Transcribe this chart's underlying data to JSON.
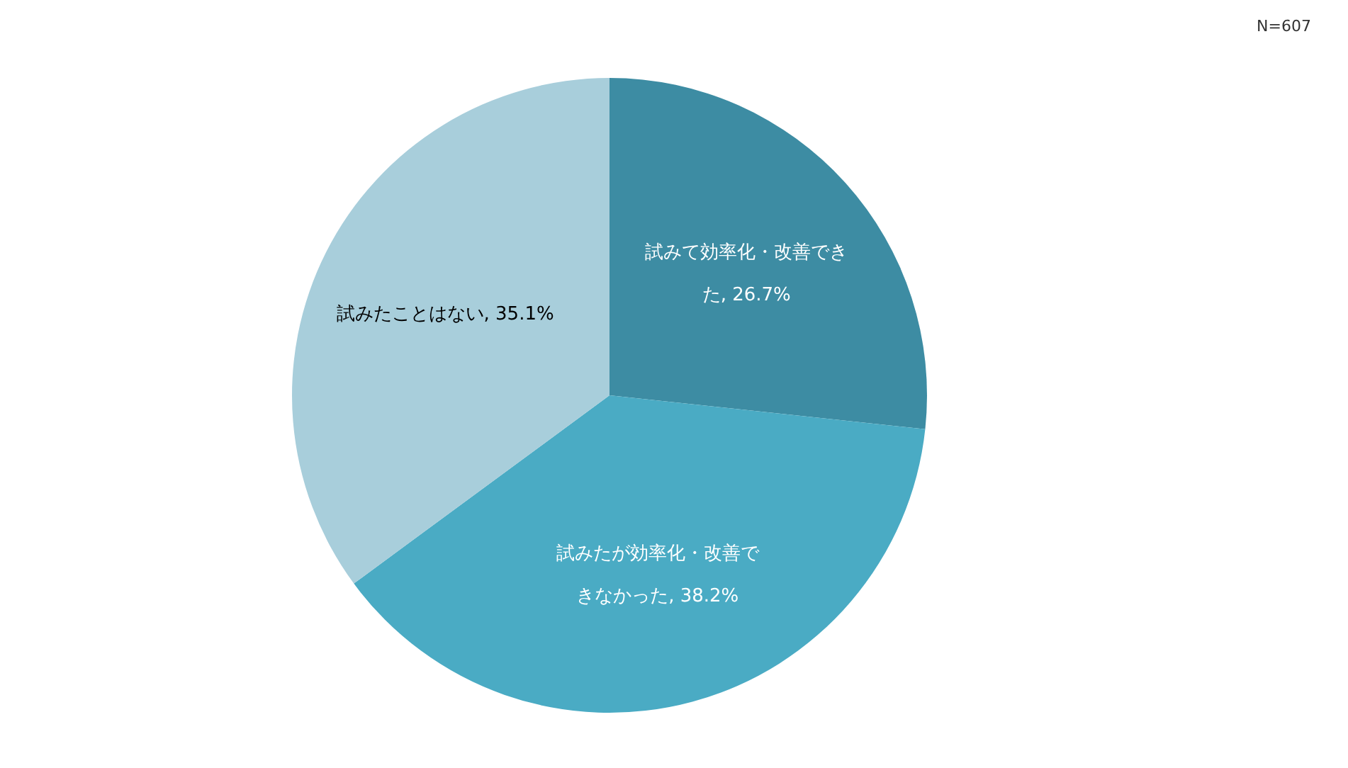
{
  "chart_data": {
    "type": "pie",
    "categories": [
      "試みて効率化・改善できた",
      "試みたが効率化・改善できなかった",
      "試みたことはない"
    ],
    "values": [
      26.7,
      38.2,
      35.1
    ],
    "colors": [
      "#3d8ca3",
      "#4aabc4",
      "#a8cedb"
    ],
    "value_labels": [
      ", 26.7%",
      ", 38.2%",
      ", 35.1%"
    ],
    "annotations": [
      "N=607"
    ]
  }
}
